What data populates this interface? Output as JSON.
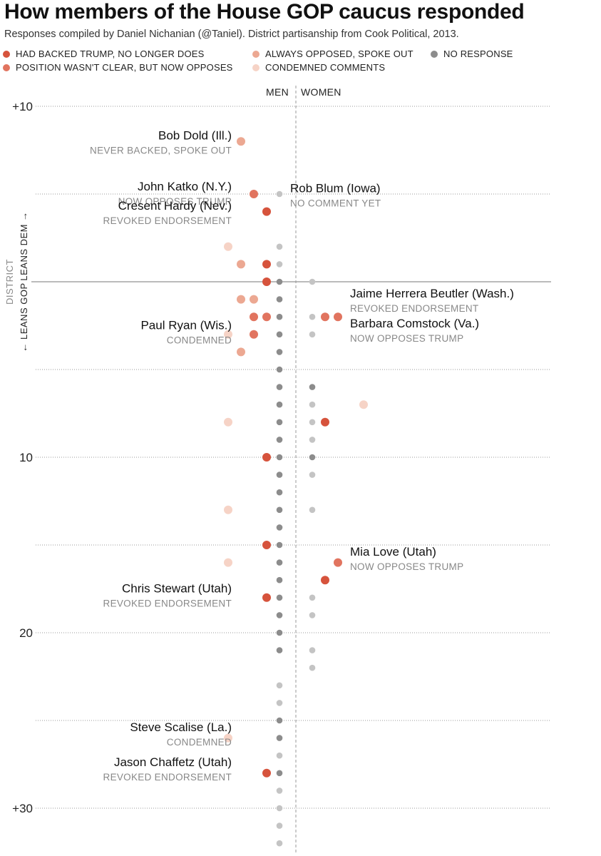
{
  "header": {
    "title": "How members of the House GOP caucus responded",
    "subtitle": "Responses compiled by Daniel Nichanian (@Taniel). District partisanship from Cook Political, 2013."
  },
  "legend": [
    {
      "key": "backed",
      "label": "HAD BACKED TRUMP, NO LONGER DOES",
      "color": "#d6533c"
    },
    {
      "key": "unclear",
      "label": "POSITION WASN'T CLEAR, BUT NOW OPPOSES",
      "color": "#e1745f"
    },
    {
      "key": "always",
      "label": "ALWAYS OPPOSED, SPOKE OUT",
      "color": "#eca892"
    },
    {
      "key": "condemned",
      "label": "CONDEMNED COMMENTS",
      "color": "#f6d3c6"
    },
    {
      "key": "none",
      "label": "NO RESPONSE",
      "color": "#8c8c8c"
    }
  ],
  "chart_data": {
    "type": "scatter",
    "title": "How members of the House GOP caucus responded",
    "columns": [
      "MEN",
      "WOMEN"
    ],
    "y_axis": {
      "ticks": [
        {
          "value": -10,
          "label": "+10"
        },
        {
          "value": 10,
          "label": "10"
        },
        {
          "value": 20,
          "label": "20"
        },
        {
          "value": 30,
          "label": "+30"
        }
      ],
      "range": [
        -10,
        30
      ],
      "label_top": "LEANS DEM",
      "label_bottom": "LEANS GOP",
      "label_side": "DISTRICT"
    },
    "labels": [
      {
        "name": "Bob Dold (Ill.)",
        "status": "NEVER BACKED, SPOKE OUT",
        "y": -8.1,
        "side": "left"
      },
      {
        "name": "John Katko (N.Y.)",
        "status": "NOW OPPOSES TRUMP",
        "y": -5.2,
        "side": "left"
      },
      {
        "name": "Cresent Hardy (Nev.)",
        "status": "REVOKED ENDORSEMENT",
        "y": -4.1,
        "side": "left"
      },
      {
        "name": "Rob Blum (Iowa)",
        "status": "NO COMMENT YET",
        "y": -5.1,
        "side": "right"
      },
      {
        "name": "Jaime Herrera Beutler (Wash.)",
        "status": "REVOKED ENDORSEMENT",
        "y": 0.9,
        "side": "right"
      },
      {
        "name": "Paul Ryan (Wis.)",
        "status": "CONDEMNED",
        "y": 2.7,
        "side": "left"
      },
      {
        "name": "Barbara Comstock (Va.)",
        "status": "NOW OPPOSES TRUMP",
        "y": 2.6,
        "side": "right"
      },
      {
        "name": "Mia Love (Utah)",
        "status": "NOW OPPOSES TRUMP",
        "y": 15.6,
        "side": "right"
      },
      {
        "name": "Chris Stewart (Utah)",
        "status": "REVOKED ENDORSEMENT",
        "y": 17.7,
        "side": "left"
      },
      {
        "name": "Steve Scalise (La.)",
        "status": "CONDEMNED",
        "y": 25.6,
        "side": "left"
      },
      {
        "name": "Jason Chaffetz (Utah)",
        "status": "REVOKED ENDORSEMENT",
        "y": 27.6,
        "side": "left"
      }
    ],
    "points": [
      {
        "y": -8,
        "gender": "men",
        "slot": 3,
        "cat": "always"
      },
      {
        "y": -5,
        "gender": "men",
        "slot": 2,
        "cat": "unclear"
      },
      {
        "y": -5,
        "gender": "men",
        "slot": 0,
        "cat": "none_light"
      },
      {
        "y": -4,
        "gender": "men",
        "slot": 1,
        "cat": "backed"
      },
      {
        "y": -2,
        "gender": "men",
        "slot": 4,
        "cat": "condemned"
      },
      {
        "y": -2,
        "gender": "men",
        "slot": 0,
        "cat": "none_light"
      },
      {
        "y": -1,
        "gender": "men",
        "slot": 3,
        "cat": "always"
      },
      {
        "y": -1,
        "gender": "men",
        "slot": 1,
        "cat": "backed"
      },
      {
        "y": -1,
        "gender": "men",
        "slot": 0,
        "cat": "none_light"
      },
      {
        "y": 0,
        "gender": "men",
        "slot": 1,
        "cat": "backed"
      },
      {
        "y": 0,
        "gender": "men",
        "slot": 0,
        "cat": "none"
      },
      {
        "y": 0,
        "gender": "women",
        "slot": 0,
        "cat": "none_light"
      },
      {
        "y": 1,
        "gender": "men",
        "slot": 3,
        "cat": "always"
      },
      {
        "y": 1,
        "gender": "men",
        "slot": 2,
        "cat": "always"
      },
      {
        "y": 1,
        "gender": "men",
        "slot": 0,
        "cat": "none"
      },
      {
        "y": 2,
        "gender": "men",
        "slot": 2,
        "cat": "unclear"
      },
      {
        "y": 2,
        "gender": "men",
        "slot": 1,
        "cat": "unclear"
      },
      {
        "y": 2,
        "gender": "men",
        "slot": 0,
        "cat": "none"
      },
      {
        "y": 2,
        "gender": "women",
        "slot": 0,
        "cat": "none_light"
      },
      {
        "y": 2,
        "gender": "women",
        "slot": 1,
        "cat": "unclear"
      },
      {
        "y": 2,
        "gender": "women",
        "slot": 2,
        "cat": "unclear"
      },
      {
        "y": 3,
        "gender": "men",
        "slot": 4,
        "cat": "condemned"
      },
      {
        "y": 3,
        "gender": "men",
        "slot": 2,
        "cat": "unclear"
      },
      {
        "y": 3,
        "gender": "men",
        "slot": 0,
        "cat": "none"
      },
      {
        "y": 3,
        "gender": "women",
        "slot": 0,
        "cat": "none_light"
      },
      {
        "y": 4,
        "gender": "men",
        "slot": 3,
        "cat": "always"
      },
      {
        "y": 4,
        "gender": "men",
        "slot": 0,
        "cat": "none"
      },
      {
        "y": 5,
        "gender": "men",
        "slot": 0,
        "cat": "none"
      },
      {
        "y": 6,
        "gender": "men",
        "slot": 0,
        "cat": "none"
      },
      {
        "y": 6,
        "gender": "women",
        "slot": 0,
        "cat": "none"
      },
      {
        "y": 7,
        "gender": "men",
        "slot": 0,
        "cat": "none"
      },
      {
        "y": 7,
        "gender": "women",
        "slot": 0,
        "cat": "none_light"
      },
      {
        "y": 7,
        "gender": "women",
        "slot": 4,
        "cat": "condemned"
      },
      {
        "y": 8,
        "gender": "men",
        "slot": 4,
        "cat": "condemned"
      },
      {
        "y": 8,
        "gender": "men",
        "slot": 0,
        "cat": "none"
      },
      {
        "y": 8,
        "gender": "women",
        "slot": 0,
        "cat": "none_light"
      },
      {
        "y": 8,
        "gender": "women",
        "slot": 1,
        "cat": "backed"
      },
      {
        "y": 9,
        "gender": "men",
        "slot": 0,
        "cat": "none"
      },
      {
        "y": 9,
        "gender": "women",
        "slot": 0,
        "cat": "none_light"
      },
      {
        "y": 10,
        "gender": "men",
        "slot": 1,
        "cat": "backed"
      },
      {
        "y": 10,
        "gender": "men",
        "slot": 0,
        "cat": "none"
      },
      {
        "y": 10,
        "gender": "women",
        "slot": 0,
        "cat": "none"
      },
      {
        "y": 11,
        "gender": "men",
        "slot": 0,
        "cat": "none"
      },
      {
        "y": 11,
        "gender": "women",
        "slot": 0,
        "cat": "none_light"
      },
      {
        "y": 12,
        "gender": "men",
        "slot": 0,
        "cat": "none"
      },
      {
        "y": 13,
        "gender": "men",
        "slot": 4,
        "cat": "condemned"
      },
      {
        "y": 13,
        "gender": "men",
        "slot": 0,
        "cat": "none"
      },
      {
        "y": 13,
        "gender": "women",
        "slot": 0,
        "cat": "none_light"
      },
      {
        "y": 14,
        "gender": "men",
        "slot": 0,
        "cat": "none"
      },
      {
        "y": 15,
        "gender": "men",
        "slot": 1,
        "cat": "backed"
      },
      {
        "y": 15,
        "gender": "men",
        "slot": 0,
        "cat": "none"
      },
      {
        "y": 16,
        "gender": "men",
        "slot": 4,
        "cat": "condemned"
      },
      {
        "y": 16,
        "gender": "men",
        "slot": 0,
        "cat": "none"
      },
      {
        "y": 16,
        "gender": "women",
        "slot": 2,
        "cat": "unclear"
      },
      {
        "y": 17,
        "gender": "men",
        "slot": 0,
        "cat": "none"
      },
      {
        "y": 17,
        "gender": "women",
        "slot": 1,
        "cat": "backed"
      },
      {
        "y": 18,
        "gender": "men",
        "slot": 1,
        "cat": "backed"
      },
      {
        "y": 18,
        "gender": "men",
        "slot": 0,
        "cat": "none"
      },
      {
        "y": 18,
        "gender": "women",
        "slot": 0,
        "cat": "none_light"
      },
      {
        "y": 19,
        "gender": "men",
        "slot": 0,
        "cat": "none"
      },
      {
        "y": 19,
        "gender": "women",
        "slot": 0,
        "cat": "none_light"
      },
      {
        "y": 20,
        "gender": "men",
        "slot": 0,
        "cat": "none"
      },
      {
        "y": 21,
        "gender": "men",
        "slot": 0,
        "cat": "none"
      },
      {
        "y": 21,
        "gender": "women",
        "slot": 0,
        "cat": "none_light"
      },
      {
        "y": 22,
        "gender": "women",
        "slot": 0,
        "cat": "none_light"
      },
      {
        "y": 23,
        "gender": "men",
        "slot": 0,
        "cat": "none_light"
      },
      {
        "y": 24,
        "gender": "men",
        "slot": 0,
        "cat": "none_light"
      },
      {
        "y": 25,
        "gender": "men",
        "slot": 0,
        "cat": "none"
      },
      {
        "y": 26,
        "gender": "men",
        "slot": 4,
        "cat": "condemned"
      },
      {
        "y": 26,
        "gender": "men",
        "slot": 0,
        "cat": "none"
      },
      {
        "y": 27,
        "gender": "men",
        "slot": 0,
        "cat": "none_light"
      },
      {
        "y": 28,
        "gender": "men",
        "slot": 1,
        "cat": "backed"
      },
      {
        "y": 28,
        "gender": "men",
        "slot": 0,
        "cat": "none"
      },
      {
        "y": 29,
        "gender": "men",
        "slot": 0,
        "cat": "none_light"
      },
      {
        "y": 30,
        "gender": "men",
        "slot": 0,
        "cat": "none_light"
      },
      {
        "y": 31,
        "gender": "men",
        "slot": 0,
        "cat": "none_light"
      },
      {
        "y": 32,
        "gender": "men",
        "slot": 0,
        "cat": "none_light"
      }
    ],
    "colors": {
      "backed": "#d6533c",
      "unclear": "#e1745f",
      "always": "#eca892",
      "condemned": "#f6d3c6",
      "none": "#8c8c8c",
      "none_light": "#c4c4c4"
    }
  }
}
